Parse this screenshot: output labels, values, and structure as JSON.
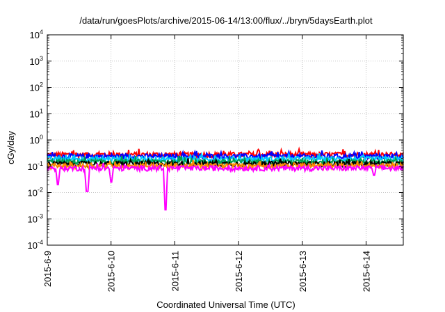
{
  "chart_data": {
    "type": "line",
    "title": "/data/run/goesPlots/archive/2015-06-14/13:00/flux/../bryn/5daysEarth.plot",
    "xlabel": "Coordinated Universal Time (UTC)",
    "ylabel": "cGy/day",
    "y_scale": "log",
    "ylim": [
      0.0001,
      10000
    ],
    "y_ticks": [
      {
        "base": "10",
        "exp": "-4"
      },
      {
        "base": "10",
        "exp": "-3"
      },
      {
        "base": "10",
        "exp": "-2"
      },
      {
        "base": "10",
        "exp": "-1"
      },
      {
        "base": "10",
        "exp": "0"
      },
      {
        "base": "10",
        "exp": "1"
      },
      {
        "base": "10",
        "exp": "2"
      },
      {
        "base": "10",
        "exp": "3"
      },
      {
        "base": "10",
        "exp": "4"
      }
    ],
    "x_ticks": [
      "2015-6-9",
      "2015-6-10",
      "2015-6-11",
      "2015-6-12",
      "2015-6-13",
      "2015-6-14"
    ],
    "xlim": [
      "2015-6-9",
      "2015-6-14 14:00"
    ],
    "grid": true,
    "legend": "none",
    "series": [
      {
        "color": "#ff0000",
        "typical": 0.28,
        "dips": []
      },
      {
        "color": "#0000ff",
        "typical": 0.24,
        "dips": []
      },
      {
        "color": "#00c8ff",
        "typical": 0.19,
        "dips": []
      },
      {
        "color": "#00a050",
        "typical": 0.15,
        "dips": []
      },
      {
        "color": "#000000",
        "typical": 0.125,
        "dips": []
      },
      {
        "color": "#ff8c00",
        "typical": 0.105,
        "dips": []
      },
      {
        "color": "#ff00ff",
        "typical": 0.085,
        "dips": [
          {
            "x": "2015-6-9 04:00",
            "value": 0.02
          },
          {
            "x": "2015-6-9 15:00",
            "value": 0.011
          },
          {
            "x": "2015-6-10 00:00",
            "value": 0.025
          },
          {
            "x": "2015-6-10 20:30",
            "value": 0.0022
          },
          {
            "x": "2015-6-14 03:00",
            "value": 0.045
          }
        ]
      }
    ]
  }
}
